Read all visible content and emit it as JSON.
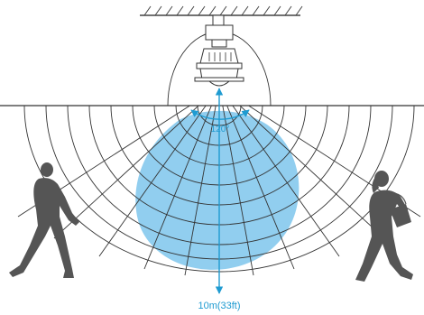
{
  "labels": {
    "angle": "120°",
    "range": "10m(33ft)"
  },
  "colors": {
    "coverage": "#7ec6ec",
    "lines": "#333333",
    "accent": "#1f9bd1",
    "figure": "#555555",
    "ceiling": "#444444"
  },
  "icons": {
    "sensor": "ceiling-motion-sensor-icon",
    "person_left": "walking-man-icon",
    "person_right": "walking-woman-with-bag-icon"
  }
}
